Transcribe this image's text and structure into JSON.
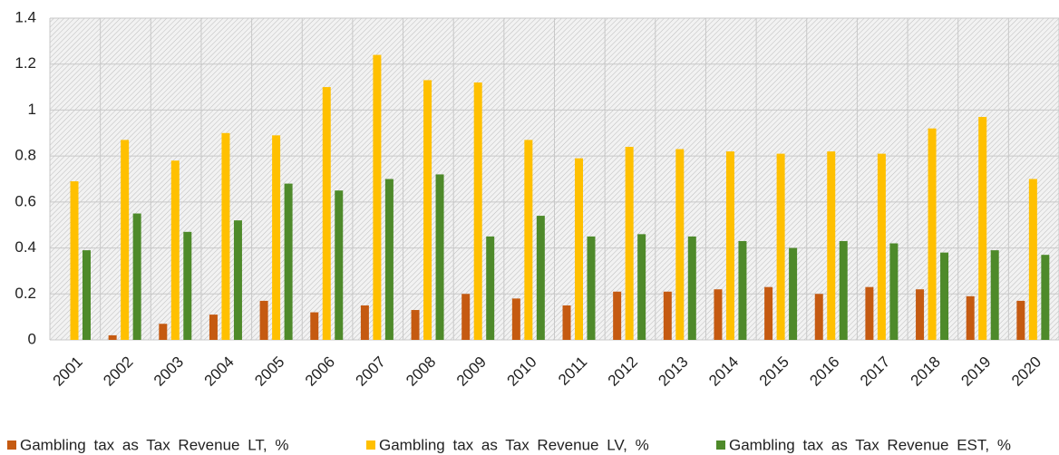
{
  "chart_data": {
    "type": "bar",
    "categories": [
      "2001",
      "2002",
      "2003",
      "2004",
      "2005",
      "2006",
      "2007",
      "2008",
      "2009",
      "2010",
      "2011",
      "2012",
      "2013",
      "2014",
      "2015",
      "2016",
      "2017",
      "2018",
      "2019",
      "2020"
    ],
    "series": [
      {
        "name": "Gambling tax as Tax Revenue LT, %",
        "color": "#c55a11",
        "values": [
          null,
          0.02,
          0.07,
          0.11,
          0.17,
          0.12,
          0.15,
          0.13,
          0.2,
          0.18,
          0.15,
          0.21,
          0.21,
          0.22,
          0.23,
          0.2,
          0.23,
          0.22,
          0.19,
          0.17
        ]
      },
      {
        "name": "Gambling tax as Tax Revenue LV, %",
        "color": "#ffc000",
        "values": [
          0.69,
          0.87,
          0.78,
          0.9,
          0.89,
          1.1,
          1.24,
          1.13,
          1.12,
          0.87,
          0.79,
          0.84,
          0.83,
          0.82,
          0.81,
          0.82,
          0.81,
          0.92,
          0.97,
          0.7
        ]
      },
      {
        "name": "Gambling tax as Tax Revenue EST, %",
        "color": "#4e8a2a",
        "values": [
          0.39,
          0.55,
          0.47,
          0.52,
          0.68,
          0.65,
          0.7,
          0.72,
          0.45,
          0.54,
          0.45,
          0.46,
          0.45,
          0.43,
          0.4,
          0.43,
          0.42,
          0.38,
          0.39,
          0.37
        ]
      }
    ],
    "ylim": [
      0,
      1.4
    ],
    "yticks": [
      0,
      0.2,
      0.4,
      0.6,
      0.8,
      1,
      1.2,
      1.4
    ],
    "grid": true,
    "legend": "bottom"
  }
}
